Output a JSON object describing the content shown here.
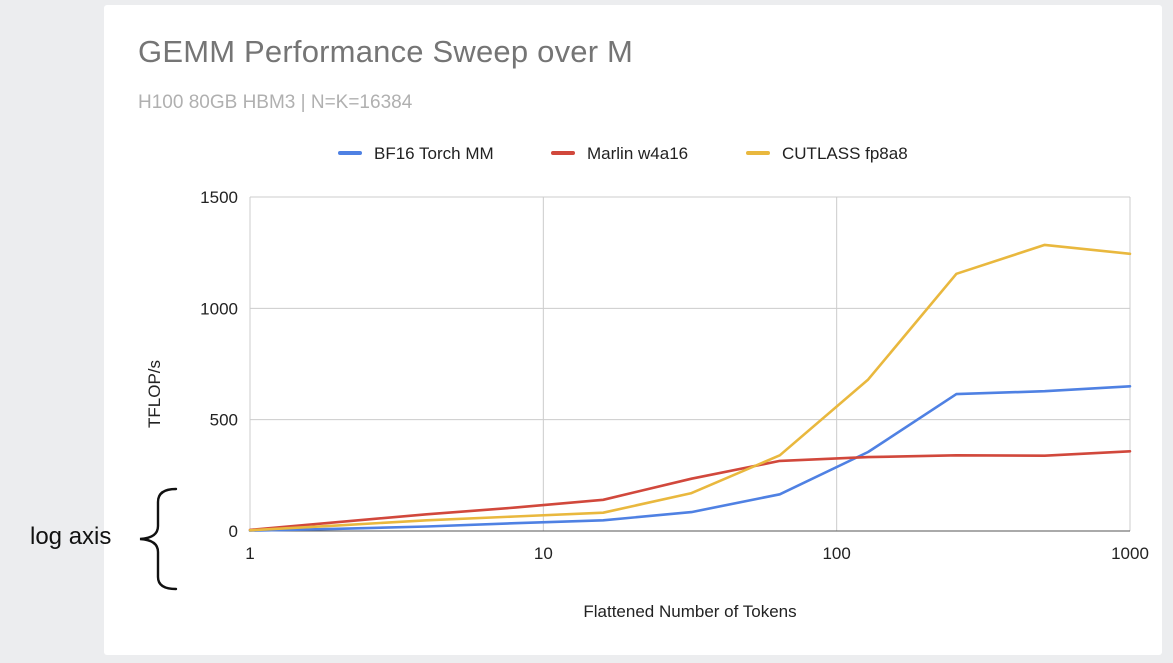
{
  "chart_data": {
    "type": "line",
    "title": "GEMM Performance Sweep over M",
    "subtitle": "H100 80GB HBM3 | N=K=16384",
    "xlabel": "Flattened Number of Tokens",
    "ylabel": "TFLOP/s",
    "xscale": "log",
    "xlim": [
      1,
      1000
    ],
    "ylim": [
      0,
      1500
    ],
    "xticks": [
      "1",
      "10",
      "100",
      "1000"
    ],
    "yticks": [
      "0",
      "500",
      "1000",
      "1500"
    ],
    "grid": true,
    "legend_position": "top",
    "annotation": "log axis",
    "series": [
      {
        "name": "BF16 Torch MM",
        "color": "#4f81e3",
        "x": [
          1,
          2,
          4,
          8,
          16,
          32,
          64,
          128,
          256,
          512,
          1000
        ],
        "values": [
          2,
          10,
          20,
          35,
          48,
          85,
          165,
          355,
          615,
          628,
          650
        ]
      },
      {
        "name": "Marlin w4a16",
        "color": "#d1483c",
        "x": [
          1,
          2,
          4,
          8,
          16,
          32,
          64,
          128,
          256,
          512,
          1000
        ],
        "values": [
          5,
          40,
          75,
          105,
          140,
          235,
          315,
          332,
          340,
          338,
          358
        ]
      },
      {
        "name": "CUTLASS fp8a8",
        "color": "#e9b83e",
        "x": [
          1,
          2,
          4,
          8,
          16,
          32,
          64,
          128,
          256,
          512,
          1000
        ],
        "values": [
          3,
          25,
          48,
          65,
          82,
          170,
          340,
          680,
          1155,
          1285,
          1245
        ]
      }
    ]
  }
}
